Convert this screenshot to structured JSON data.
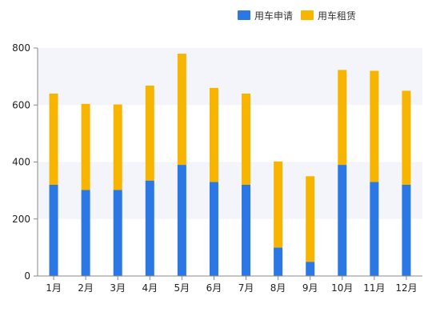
{
  "chart_data": {
    "type": "bar",
    "stacked": true,
    "categories": [
      "1月",
      "2月",
      "3月",
      "4月",
      "5月",
      "6月",
      "7月",
      "8月",
      "9月",
      "10月",
      "11月",
      "12月"
    ],
    "series": [
      {
        "name": "用车申请",
        "color": "#2b78e4",
        "values": [
          320,
          302,
          302,
          335,
          390,
          330,
          320,
          100,
          50,
          390,
          330,
          320
        ]
      },
      {
        "name": "用车租赁",
        "color": "#f7b500",
        "values": [
          320,
          302,
          300,
          333,
          390,
          330,
          320,
          302,
          300,
          333,
          390,
          330
        ]
      }
    ],
    "yticks": [
      0,
      200,
      400,
      600,
      800
    ],
    "ylim": [
      0,
      800
    ],
    "grid": "alternating horizontal bands",
    "legend_position": "top-right",
    "band_color": "#f4f5fa",
    "axis_color": "#888888"
  }
}
